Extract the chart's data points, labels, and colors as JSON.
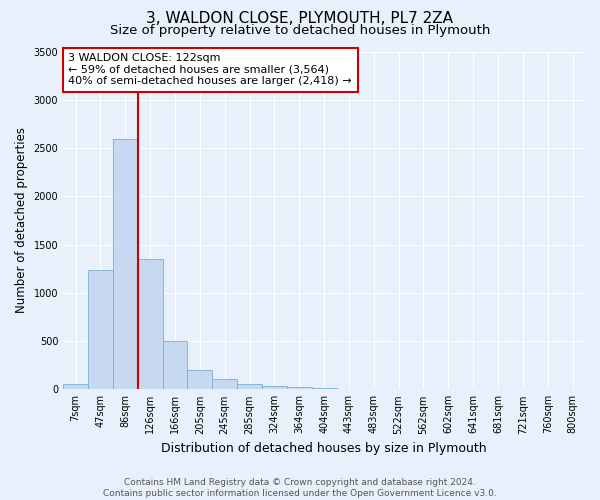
{
  "title": "3, WALDON CLOSE, PLYMOUTH, PL7 2ZA",
  "subtitle": "Size of property relative to detached houses in Plymouth",
  "xlabel": "Distribution of detached houses by size in Plymouth",
  "ylabel": "Number of detached properties",
  "bar_labels": [
    "7sqm",
    "47sqm",
    "86sqm",
    "126sqm",
    "166sqm",
    "205sqm",
    "245sqm",
    "285sqm",
    "324sqm",
    "364sqm",
    "404sqm",
    "443sqm",
    "483sqm",
    "522sqm",
    "562sqm",
    "602sqm",
    "641sqm",
    "681sqm",
    "721sqm",
    "760sqm",
    "800sqm"
  ],
  "bar_values": [
    50,
    1240,
    2590,
    1350,
    500,
    200,
    110,
    50,
    30,
    20,
    10,
    5,
    3,
    0,
    0,
    0,
    0,
    0,
    0,
    0,
    0
  ],
  "bar_color": "#c7d9f0",
  "bar_edge_color": "#7bafd4",
  "vline_color": "#cc0000",
  "annotation_title": "3 WALDON CLOSE: 122sqm",
  "annotation_line1": "← 59% of detached houses are smaller (3,564)",
  "annotation_line2": "40% of semi-detached houses are larger (2,418) →",
  "annotation_box_color": "#ffffff",
  "annotation_box_edge": "#cc0000",
  "ylim": [
    0,
    3500
  ],
  "yticks": [
    0,
    500,
    1000,
    1500,
    2000,
    2500,
    3000,
    3500
  ],
  "footer1": "Contains HM Land Registry data © Crown copyright and database right 2024.",
  "footer2": "Contains public sector information licensed under the Open Government Licence v3.0.",
  "bg_color": "#e8f0fb",
  "plot_bg_color": "#e8f0fb",
  "title_fontsize": 11,
  "subtitle_fontsize": 9.5,
  "ylabel_fontsize": 8.5,
  "xlabel_fontsize": 9,
  "tick_fontsize": 7,
  "annotation_fontsize": 8,
  "footer_fontsize": 6.5,
  "grid_color": "#ffffff",
  "vline_x_index": 2
}
